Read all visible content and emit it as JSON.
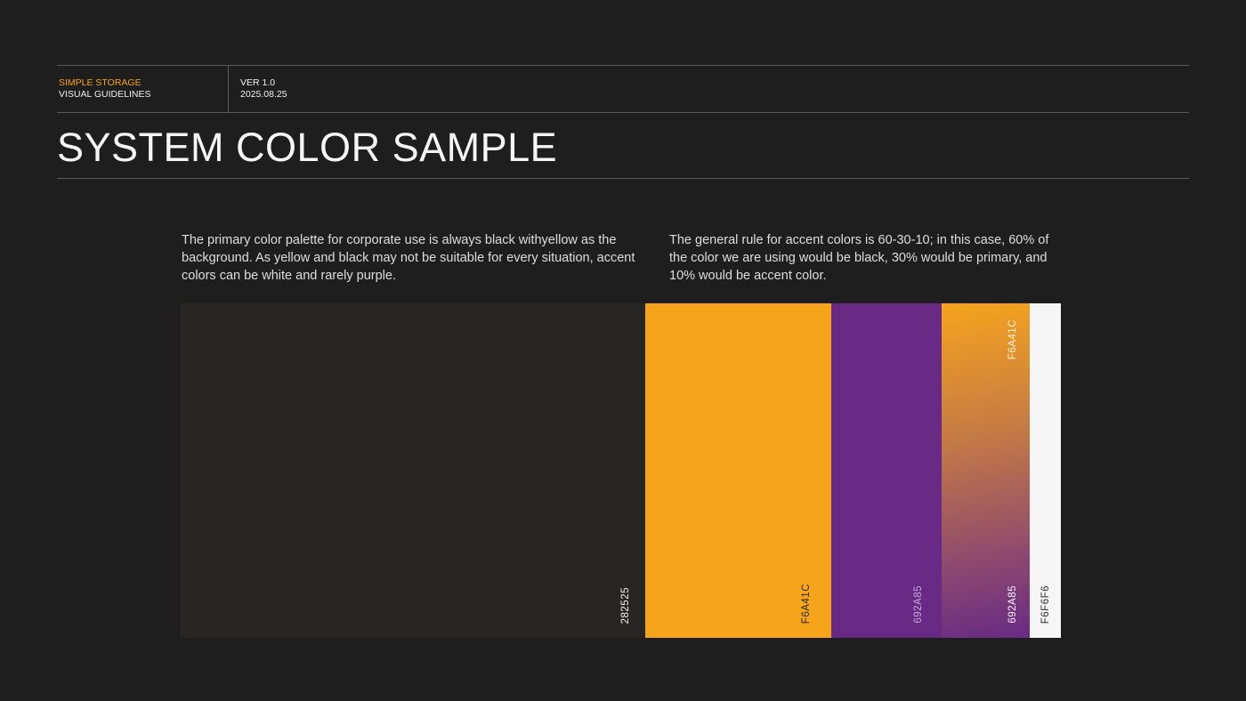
{
  "header": {
    "brand": "SIMPLE STORAGE",
    "subtitle": "VISUAL GUIDELINES",
    "version": "VER 1.0",
    "date": "2025.08.25"
  },
  "title": "SYSTEM COLOR SAMPLE",
  "paragraphs": [
    "The primary color palette for corporate use is always black withyellow as the background. As yellow and black may not be suitable for every situation, accent colors can be white and rarely purple.",
    "The general rule for accent colors is 60-30-10; in this case, 60% of the color we are using would be black, 30% would be primary, and 10% would be accent color."
  ],
  "swatches": [
    {
      "label": "282525",
      "color": "#282525"
    },
    {
      "label": "F6A41C",
      "color": "#F6A41C"
    },
    {
      "label": "692A85",
      "color": "#692A85"
    },
    {
      "label_top": "F6A41C",
      "label": "692A85",
      "gradient_from": "#F6A41C",
      "gradient_to": "#692A85"
    },
    {
      "label": "F6F6F6",
      "color": "#F6F6F6"
    }
  ]
}
